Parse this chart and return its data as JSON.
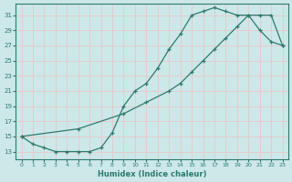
{
  "xlabel": "Humidex (Indice chaleur)",
  "ylabel": "",
  "bg_color": "#cce8e8",
  "grid_color": "#e8c8c8",
  "line_color": "#2d7a6e",
  "xlim": [
    -0.5,
    23.5
  ],
  "ylim": [
    12.0,
    32.5
  ],
  "xticks": [
    0,
    1,
    2,
    3,
    4,
    5,
    6,
    7,
    8,
    9,
    10,
    11,
    12,
    13,
    14,
    15,
    16,
    17,
    18,
    19,
    20,
    21,
    22,
    23
  ],
  "yticks": [
    13,
    15,
    17,
    19,
    21,
    23,
    25,
    27,
    29,
    31
  ],
  "line1_x": [
    0,
    1,
    2,
    3,
    4,
    5,
    6,
    7,
    8,
    9,
    10,
    11,
    12,
    13,
    14,
    15,
    16,
    17,
    18,
    19,
    20,
    21,
    22,
    23
  ],
  "line1_y": [
    15,
    14,
    13.5,
    13,
    13,
    13,
    13,
    13.5,
    15.5,
    19,
    21,
    22,
    24,
    26.5,
    28.5,
    31,
    31.5,
    32,
    31.5,
    31,
    31,
    29,
    27.5,
    27
  ],
  "line2_x": [
    0,
    5,
    9,
    11,
    13,
    14,
    15,
    16,
    17,
    18,
    19,
    20,
    21,
    22,
    23
  ],
  "line2_y": [
    15,
    16,
    18,
    19.5,
    21,
    22,
    23.5,
    25,
    26.5,
    28,
    29.5,
    31,
    31,
    31,
    27
  ]
}
